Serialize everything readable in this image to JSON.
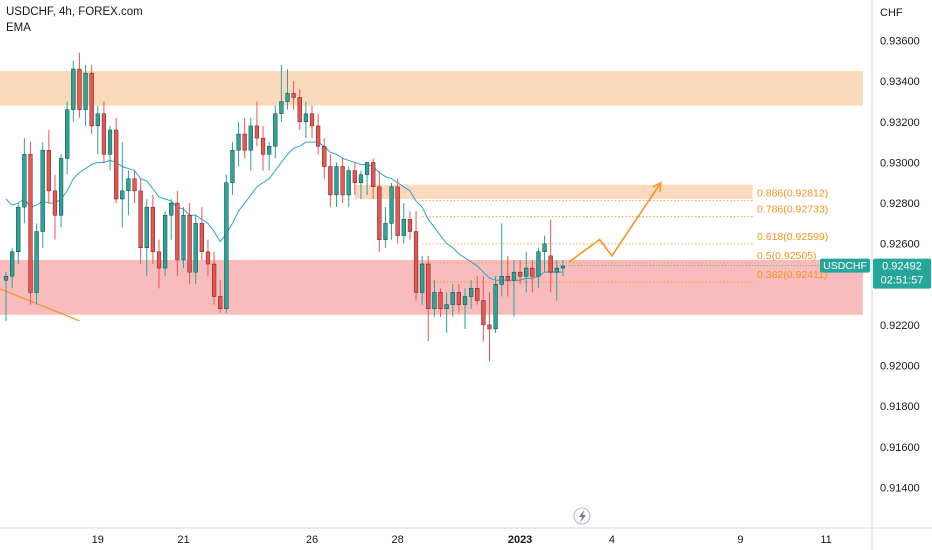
{
  "header": {
    "symbol_line": "USDCHF, 4h, FOREX.com",
    "indicator": "EMA"
  },
  "price_badge": {
    "symbol": "USDCHF",
    "price": "0.92492",
    "countdown": "02:51:57"
  },
  "colors": {
    "up": "#26a69a",
    "down": "#ef5350",
    "ema": "#2ba3cc",
    "fib": "#f7931e",
    "supply_zone": "#f9d5b5",
    "demand_zone": "#f8b5b5",
    "badge": "#26a69a"
  },
  "icons": {
    "flash": "lightning-icon"
  },
  "chart_data": {
    "type": "candlestick",
    "symbol": "USDCHF",
    "timeframe": "4h",
    "y_axis_label": "CHF",
    "ylim": [
      0.912,
      0.938
    ],
    "y_ticks": [
      0.914,
      0.916,
      0.918,
      0.92,
      0.922,
      0.924,
      0.926,
      0.928,
      0.93,
      0.932,
      0.934,
      0.936
    ],
    "y_tick_labels": [
      "0.91400",
      "0.91600",
      "0.91800",
      "0.92000",
      "0.92200",
      "0.92400",
      "0.92600",
      "0.92800",
      "0.93000",
      "0.93200",
      "0.93400",
      "0.93600"
    ],
    "x_ticks": [
      {
        "label": "19",
        "index": 15,
        "bold": false
      },
      {
        "label": "21",
        "index": 29,
        "bold": false
      },
      {
        "label": "26",
        "index": 50,
        "bold": false
      },
      {
        "label": "28",
        "index": 64,
        "bold": false
      },
      {
        "label": "2023",
        "index": 84,
        "bold": true
      },
      {
        "label": "4",
        "index": 99,
        "bold": false
      },
      {
        "label": "9",
        "index": 120,
        "bold": false
      },
      {
        "label": "11",
        "index": 134,
        "bold": false
      }
    ],
    "candles": [
      [
        0.9242,
        0.9246,
        0.9222,
        0.9244
      ],
      [
        0.9244,
        0.9258,
        0.9238,
        0.9256
      ],
      [
        0.9256,
        0.928,
        0.925,
        0.9278
      ],
      [
        0.9278,
        0.9312,
        0.927,
        0.9304
      ],
      [
        0.9304,
        0.931,
        0.923,
        0.9236
      ],
      [
        0.9236,
        0.927,
        0.923,
        0.9266
      ],
      [
        0.9266,
        0.931,
        0.9258,
        0.9306
      ],
      [
        0.9306,
        0.9316,
        0.928,
        0.9286
      ],
      [
        0.9286,
        0.9294,
        0.9262,
        0.9274
      ],
      [
        0.9274,
        0.9304,
        0.9268,
        0.9302
      ],
      [
        0.9302,
        0.933,
        0.9294,
        0.9326
      ],
      [
        0.9326,
        0.935,
        0.932,
        0.9346
      ],
      [
        0.9346,
        0.9354,
        0.9322,
        0.9326
      ],
      [
        0.9326,
        0.9348,
        0.9318,
        0.9344
      ],
      [
        0.9344,
        0.9348,
        0.9314,
        0.9318
      ],
      [
        0.9318,
        0.9328,
        0.9304,
        0.9324
      ],
      [
        0.9324,
        0.933,
        0.93,
        0.9304
      ],
      [
        0.9304,
        0.9318,
        0.9296,
        0.9316
      ],
      [
        0.9316,
        0.9322,
        0.928,
        0.9282
      ],
      [
        0.9282,
        0.931,
        0.9268,
        0.9286
      ],
      [
        0.9286,
        0.9296,
        0.9274,
        0.9292
      ],
      [
        0.9292,
        0.9296,
        0.928,
        0.9286
      ],
      [
        0.9286,
        0.9292,
        0.925,
        0.9258
      ],
      [
        0.9258,
        0.9282,
        0.9244,
        0.9278
      ],
      [
        0.9278,
        0.9284,
        0.925,
        0.9256
      ],
      [
        0.9256,
        0.9262,
        0.9238,
        0.9248
      ],
      [
        0.9248,
        0.9276,
        0.9244,
        0.9274
      ],
      [
        0.9274,
        0.9282,
        0.9262,
        0.928
      ],
      [
        0.928,
        0.9286,
        0.9244,
        0.9252
      ],
      [
        0.9252,
        0.9278,
        0.9248,
        0.9274
      ],
      [
        0.9274,
        0.928,
        0.924,
        0.9246
      ],
      [
        0.9246,
        0.9274,
        0.924,
        0.927
      ],
      [
        0.927,
        0.9278,
        0.9252,
        0.9256
      ],
      [
        0.9256,
        0.9262,
        0.9244,
        0.925
      ],
      [
        0.925,
        0.9256,
        0.923,
        0.9234
      ],
      [
        0.9234,
        0.9242,
        0.9226,
        0.9228
      ],
      [
        0.9228,
        0.9294,
        0.9226,
        0.929
      ],
      [
        0.929,
        0.931,
        0.9284,
        0.9306
      ],
      [
        0.9306,
        0.932,
        0.9298,
        0.9314
      ],
      [
        0.9314,
        0.9322,
        0.9302,
        0.9306
      ],
      [
        0.9306,
        0.9322,
        0.9296,
        0.9318
      ],
      [
        0.9318,
        0.933,
        0.9308,
        0.9312
      ],
      [
        0.9312,
        0.9318,
        0.9296,
        0.9304
      ],
      [
        0.9304,
        0.931,
        0.9296,
        0.9308
      ],
      [
        0.9308,
        0.9328,
        0.9302,
        0.9324
      ],
      [
        0.9324,
        0.9348,
        0.932,
        0.933
      ],
      [
        0.933,
        0.9346,
        0.9326,
        0.9334
      ],
      [
        0.9334,
        0.934,
        0.9326,
        0.9332
      ],
      [
        0.9332,
        0.9336,
        0.9316,
        0.932
      ],
      [
        0.932,
        0.933,
        0.9312,
        0.9324
      ],
      [
        0.9324,
        0.9328,
        0.9312,
        0.9318
      ],
      [
        0.9318,
        0.9324,
        0.9304,
        0.9308
      ],
      [
        0.9308,
        0.9312,
        0.9292,
        0.9298
      ],
      [
        0.9298,
        0.9304,
        0.9278,
        0.9284
      ],
      [
        0.9284,
        0.93,
        0.9278,
        0.9298
      ],
      [
        0.9298,
        0.9302,
        0.928,
        0.9284
      ],
      [
        0.9284,
        0.9298,
        0.9278,
        0.9296
      ],
      [
        0.9296,
        0.93,
        0.9284,
        0.929
      ],
      [
        0.929,
        0.9296,
        0.9282,
        0.9294
      ],
      [
        0.9294,
        0.93,
        0.9284,
        0.93
      ],
      [
        0.93,
        0.9302,
        0.9282,
        0.9288
      ],
      [
        0.9288,
        0.9296,
        0.9256,
        0.9262
      ],
      [
        0.9262,
        0.9278,
        0.9258,
        0.927
      ],
      [
        0.927,
        0.929,
        0.9262,
        0.9288
      ],
      [
        0.9288,
        0.9292,
        0.926,
        0.9264
      ],
      [
        0.9264,
        0.928,
        0.926,
        0.9272
      ],
      [
        0.9272,
        0.9276,
        0.9262,
        0.9266
      ],
      [
        0.9266,
        0.9276,
        0.9232,
        0.9236
      ],
      [
        0.9236,
        0.9254,
        0.923,
        0.925
      ],
      [
        0.925,
        0.9254,
        0.9212,
        0.9228
      ],
      [
        0.9228,
        0.9242,
        0.9224,
        0.9236
      ],
      [
        0.9236,
        0.9238,
        0.9224,
        0.9228
      ],
      [
        0.9228,
        0.9236,
        0.9216,
        0.923
      ],
      [
        0.923,
        0.924,
        0.9224,
        0.9236
      ],
      [
        0.9236,
        0.924,
        0.9226,
        0.923
      ],
      [
        0.923,
        0.9238,
        0.9218,
        0.9234
      ],
      [
        0.9234,
        0.9242,
        0.9228,
        0.9238
      ],
      [
        0.9238,
        0.9244,
        0.923,
        0.9232
      ],
      [
        0.9232,
        0.9244,
        0.9212,
        0.922
      ],
      [
        0.922,
        0.9236,
        0.9202,
        0.9218
      ],
      [
        0.9218,
        0.9244,
        0.9216,
        0.924
      ],
      [
        0.924,
        0.927,
        0.9234,
        0.9244
      ],
      [
        0.9244,
        0.9254,
        0.9234,
        0.9242
      ],
      [
        0.9242,
        0.9252,
        0.9224,
        0.9246
      ],
      [
        0.9246,
        0.9252,
        0.924,
        0.9244
      ],
      [
        0.9244,
        0.9256,
        0.9236,
        0.9248
      ],
      [
        0.9248,
        0.9252,
        0.9236,
        0.9244
      ],
      [
        0.9244,
        0.9258,
        0.9238,
        0.9256
      ],
      [
        0.9256,
        0.9264,
        0.9246,
        0.926
      ],
      [
        0.9254,
        0.9272,
        0.9236,
        0.9246
      ],
      [
        0.9246,
        0.9252,
        0.9232,
        0.9248
      ],
      [
        0.9248,
        0.9252,
        0.9244,
        0.9249
      ]
    ],
    "ema": [
      0.9282,
      0.9279,
      0.928,
      0.9282,
      0.9278,
      0.9279,
      0.9281,
      0.928,
      0.928,
      0.9282,
      0.9286,
      0.9292,
      0.9295,
      0.9297,
      0.9299,
      0.93,
      0.93,
      0.9301,
      0.93,
      0.9298,
      0.9297,
      0.9296,
      0.9292,
      0.9291,
      0.9287,
      0.9283,
      0.9282,
      0.9281,
      0.9278,
      0.9277,
      0.9274,
      0.9274,
      0.9272,
      0.927,
      0.9266,
      0.9261,
      0.9265,
      0.927,
      0.9276,
      0.928,
      0.9284,
      0.9288,
      0.929,
      0.9292,
      0.9296,
      0.93,
      0.9304,
      0.9307,
      0.9308,
      0.931,
      0.931,
      0.931,
      0.9308,
      0.9305,
      0.9304,
      0.9302,
      0.9301,
      0.93,
      0.9299,
      0.9299,
      0.9298,
      0.9295,
      0.9293,
      0.9292,
      0.929,
      0.9288,
      0.9286,
      0.9281,
      0.9278,
      0.9272,
      0.9268,
      0.9264,
      0.926,
      0.9258,
      0.9255,
      0.9253,
      0.9251,
      0.9249,
      0.9246,
      0.9243,
      0.9242,
      0.9242,
      0.9242,
      0.9242,
      0.9242,
      0.9243,
      0.9243,
      0.9244,
      0.9246,
      0.9246,
      0.9246,
      0.9246
    ],
    "zones": [
      {
        "kind": "supply",
        "price_from": 0.9328,
        "price_to": 0.9345,
        "index_from": -2,
        "index_to": 140
      },
      {
        "kind": "supply",
        "price_from": 0.9282,
        "price_to": 0.9289,
        "index_from": 57,
        "index_to": 122
      },
      {
        "kind": "demand",
        "price_from": 0.9225,
        "price_to": 0.9252,
        "index_from": -2,
        "index_to": 140
      }
    ],
    "fibonacci": [
      {
        "ratio": "0.886",
        "price": 0.92812,
        "label": "0.886(0.92812)"
      },
      {
        "ratio": "0.786",
        "price": 0.92733,
        "label": "0.786(0.92733)"
      },
      {
        "ratio": "0.618",
        "price": 0.92599,
        "label": "0.618(0.92599)"
      },
      {
        "ratio": "0.5",
        "price": 0.92505,
        "label": "0.5(0.92505)"
      },
      {
        "ratio": "0.382",
        "price": 0.92411,
        "label": "0.382(0.92411)"
      }
    ],
    "trendline": [
      {
        "index": -2,
        "price": 0.9239
      },
      {
        "index": 12,
        "price": 0.9222
      }
    ],
    "projection_path": [
      {
        "index": 92,
        "price": 0.9251
      },
      {
        "index": 97,
        "price": 0.9262
      },
      {
        "index": 99,
        "price": 0.9254
      },
      {
        "index": 107,
        "price": 0.929
      }
    ],
    "last_price": 0.92492
  }
}
